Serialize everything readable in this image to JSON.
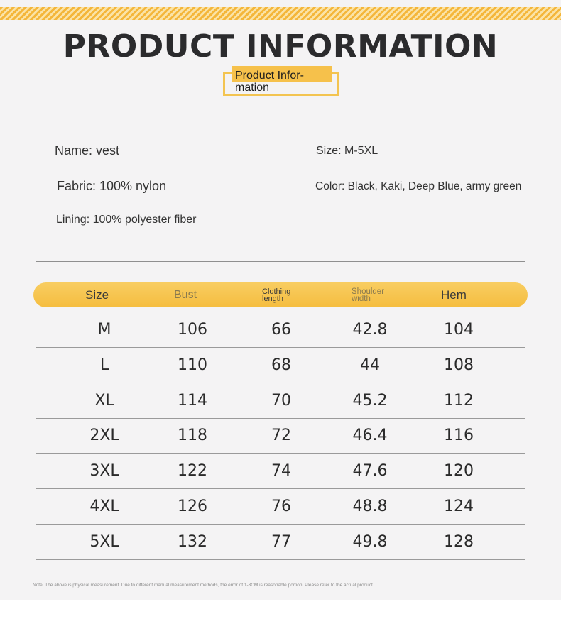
{
  "title": "PRODUCT INFORMATION",
  "subtitle_line1": "Product Infor-",
  "subtitle_line2": "mation",
  "info": {
    "name": "Name: vest",
    "size": "Size: M-5XL",
    "fabric": "Fabric: 100% nylon",
    "color": "Color: Black, Kaki, Deep Blue, army green",
    "lining": "Lining: 100% polyester fiber"
  },
  "table": {
    "headers": {
      "size": "Size",
      "bust": "Bust",
      "length_1": "Clothing",
      "length_2": "length",
      "shoulder_1": "Shoulder",
      "shoulder_2": "width",
      "hem": "Hem"
    },
    "rows": [
      [
        "M",
        "106",
        "66",
        "42.8",
        "104"
      ],
      [
        "L",
        "110",
        "68",
        "44",
        "108"
      ],
      [
        "XL",
        "114",
        "70",
        "45.2",
        "112"
      ],
      [
        "2XL",
        "118",
        "72",
        "46.4",
        "116"
      ],
      [
        "3XL",
        "122",
        "74",
        "47.6",
        "120"
      ],
      [
        "4XL",
        "126",
        "76",
        "48.8",
        "124"
      ],
      [
        "5XL",
        "132",
        "77",
        "49.8",
        "128"
      ]
    ]
  },
  "note": "Note: The above is physical measurement. Due to different manual measurement methods, the error of 1-3CM is reasonable portion. Please refer to the actual product.",
  "colors": {
    "accent": "#f5bd3f",
    "background": "#f4f3f4"
  }
}
